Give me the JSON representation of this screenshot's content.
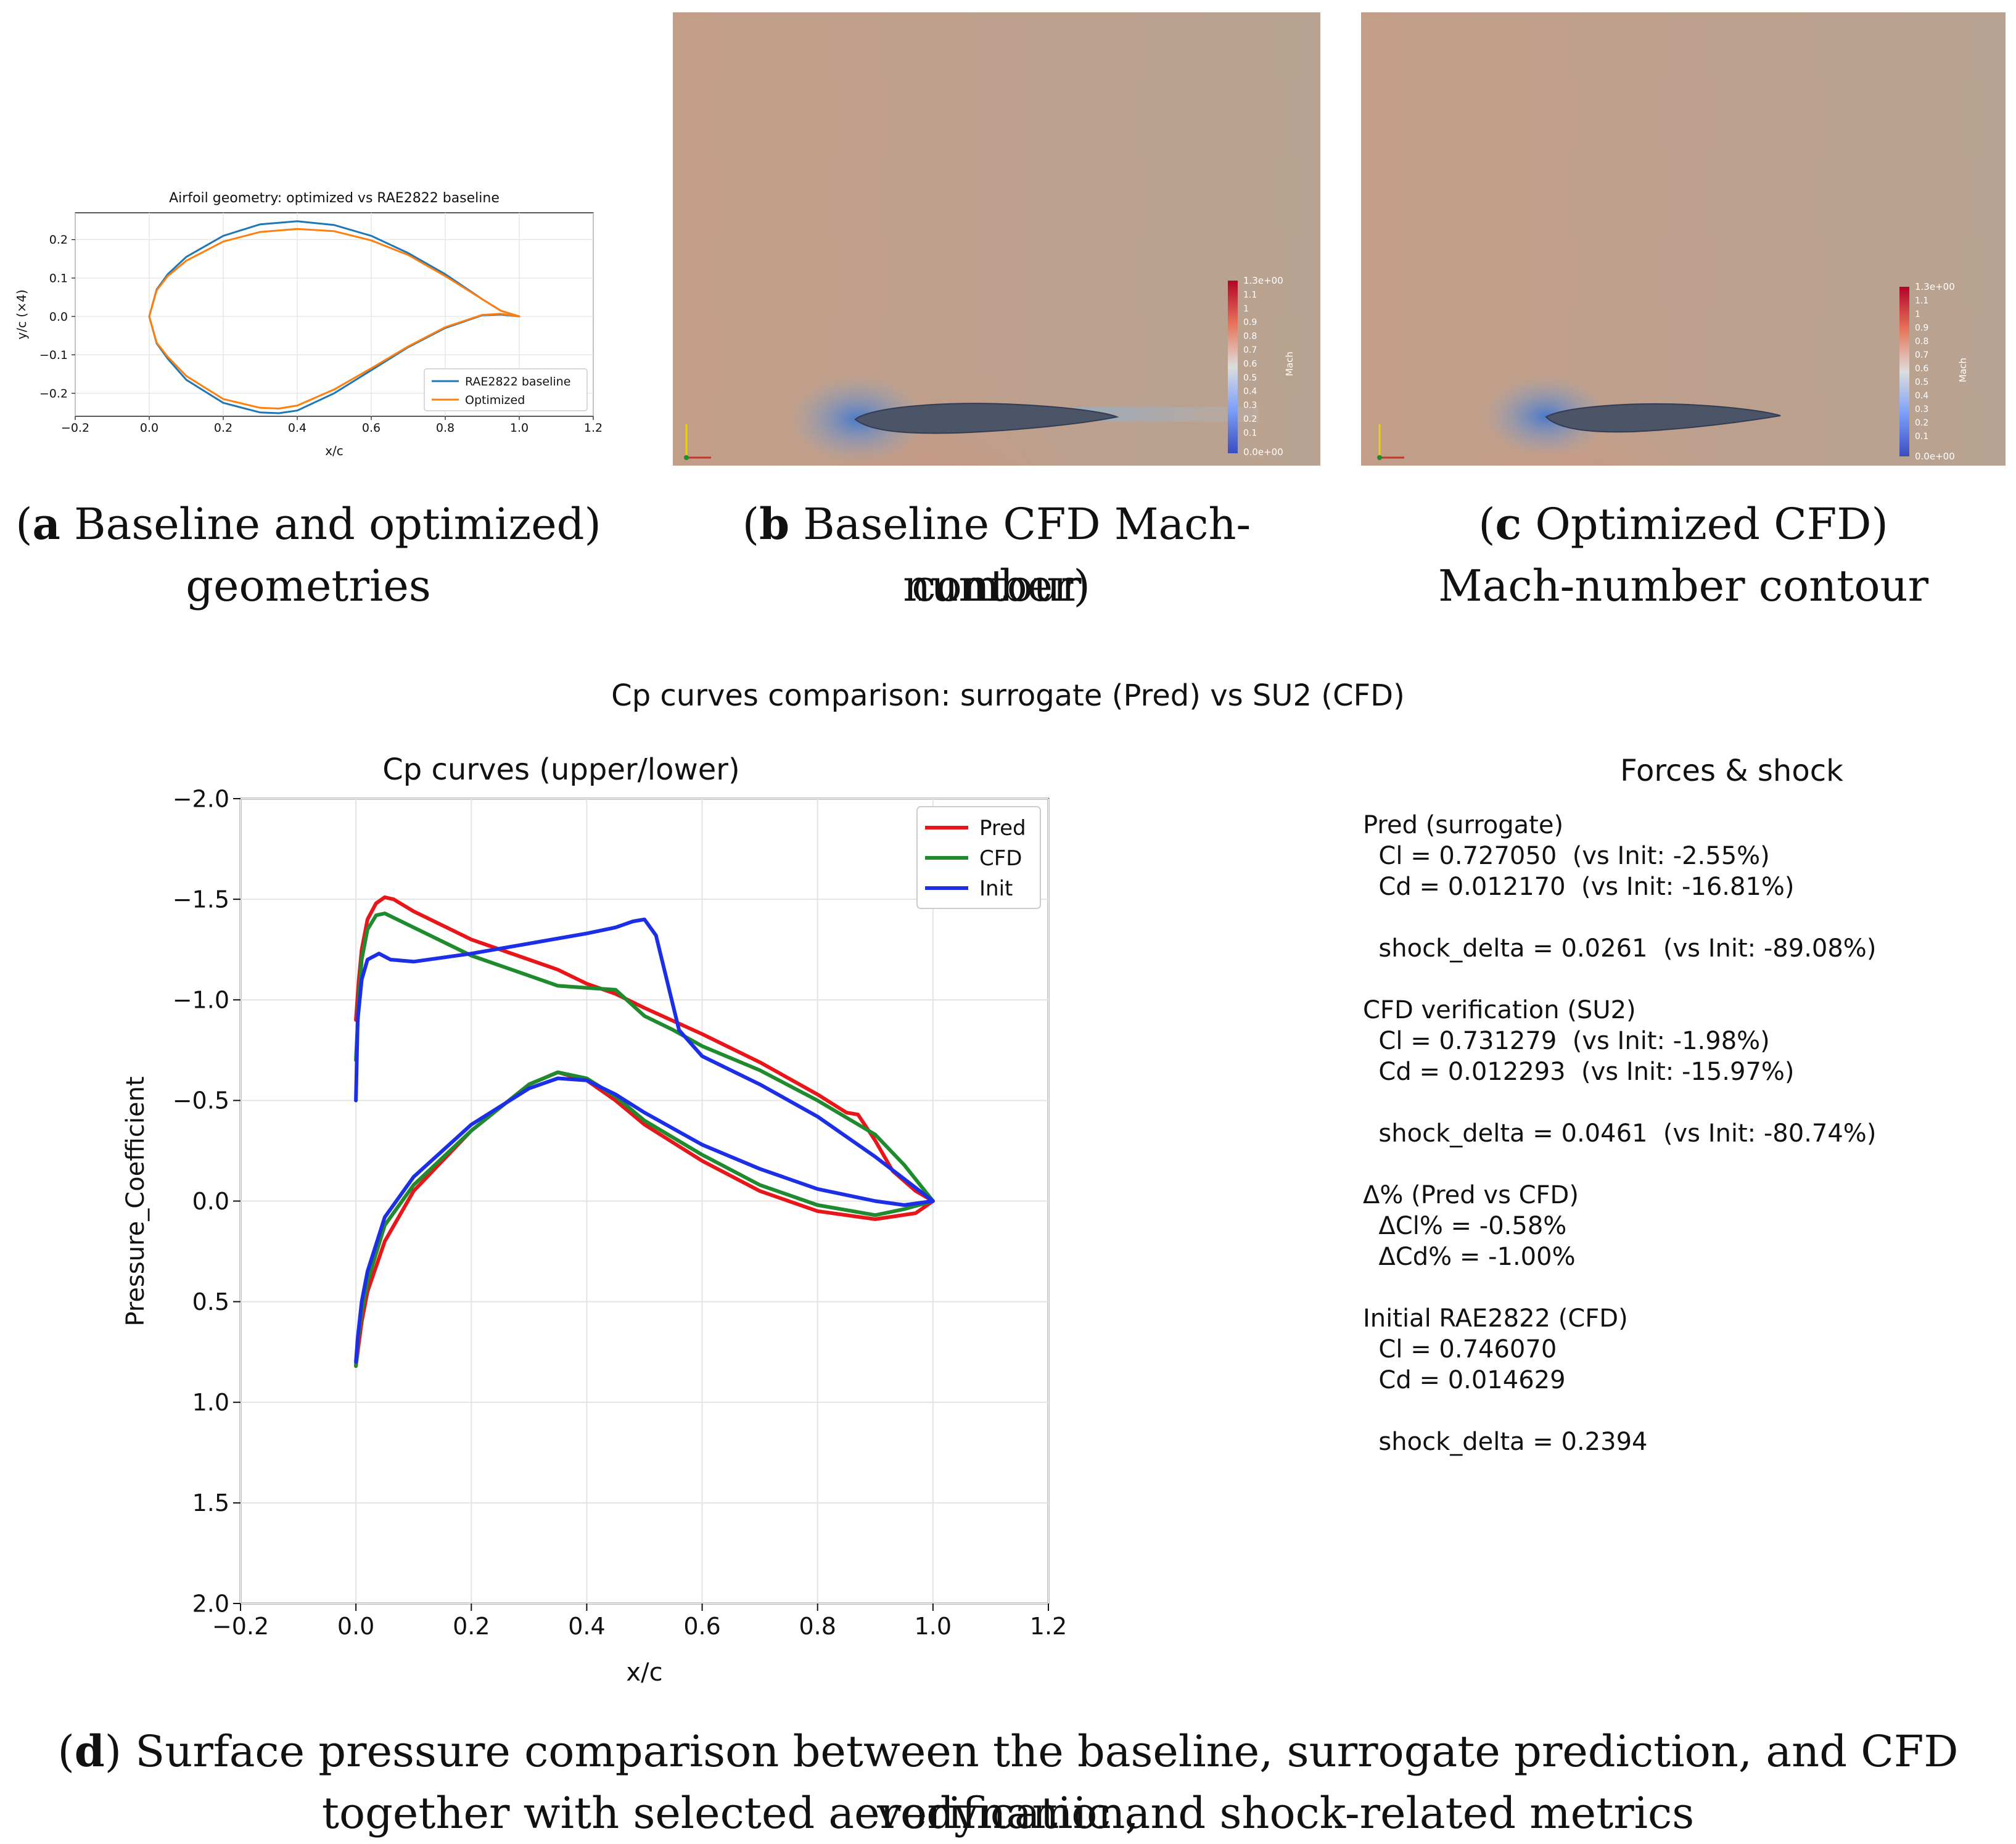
{
  "panel_a": {
    "caption_label": "a",
    "caption_text_l1": " Baseline and optimized",
    "caption_text_l2": "geometries"
  },
  "panel_b": {
    "caption_label": "b",
    "caption_text_l1": " Baseline CFD Mach-number",
    "caption_text_l2": "contour",
    "colorbar": {
      "title": "Mach",
      "max_label": "1.3e+00",
      "min_label": "0.0e+00",
      "ticks": [
        "1.1",
        "1",
        "0.9",
        "0.8",
        "0.7",
        "0.6",
        "0.5",
        "0.4",
        "0.3",
        "0.2",
        "0.1"
      ]
    }
  },
  "panel_c": {
    "caption_label": "c",
    "caption_text_l1": " Optimized CFD",
    "caption_text_l2": "Mach-number contour",
    "colorbar": {
      "title": "Mach",
      "max_label": "1.3e+00",
      "min_label": "0.0e+00",
      "ticks": [
        "1.1",
        "1",
        "0.9",
        "0.8",
        "0.7",
        "0.6",
        "0.5",
        "0.4",
        "0.3",
        "0.2",
        "0.1"
      ]
    }
  },
  "panel_d": {
    "caption_label": "d",
    "caption_text_l1": " Surface pressure comparison between the baseline, surrogate prediction, and CFD verification,",
    "caption_text_l2": "together with selected aerodynamic and shock-related metrics",
    "suptitle": "Cp curves comparison: surrogate (Pred) vs SU2 (CFD)",
    "forces_title": "Forces & shock",
    "forces_lines": [
      "Pred (surrogate)",
      "  Cl = 0.727050  (vs Init: -2.55%)",
      "  Cd = 0.012170  (vs Init: -16.81%)",
      "",
      "  shock_delta = 0.0261  (vs Init: -89.08%)",
      "",
      "CFD verification (SU2)",
      "  Cl = 0.731279  (vs Init: -1.98%)",
      "  Cd = 0.012293  (vs Init: -15.97%)",
      "",
      "  shock_delta = 0.0461  (vs Init: -80.74%)",
      "",
      "Δ% (Pred vs CFD)",
      "  ΔCl% = -0.58%",
      "  ΔCd% = -1.00%",
      "",
      "Initial RAE2822 (CFD)",
      "  Cl = 0.746070",
      "  Cd = 0.014629",
      "",
      "  shock_delta = 0.2394"
    ]
  },
  "chart_data": [
    {
      "type": "line",
      "title": "Airfoil geometry: optimized vs RAE2822 baseline",
      "xlabel": "x/c",
      "ylabel": "y/c (×4)",
      "xlim": [
        -0.2,
        1.2
      ],
      "ylim": [
        -0.26,
        0.27
      ],
      "xticks": [
        "−0.2",
        "0.0",
        "0.2",
        "0.4",
        "0.6",
        "0.8",
        "1.0",
        "1.2"
      ],
      "yticks": [
        "0.2",
        "0.1",
        "0.0",
        "−0.1",
        "−0.2"
      ],
      "ytick_values": [
        0.2,
        0.1,
        0.0,
        -0.1,
        -0.2
      ],
      "grid": true,
      "legend_position": "lower-right",
      "series": [
        {
          "name": "RAE2822 baseline",
          "color": "#1f77b4",
          "x": [
            1.0,
            0.95,
            0.9,
            0.8,
            0.7,
            0.6,
            0.5,
            0.4,
            0.3,
            0.2,
            0.1,
            0.05,
            0.02,
            0.0,
            0.02,
            0.05,
            0.1,
            0.2,
            0.3,
            0.35,
            0.4,
            0.5,
            0.6,
            0.7,
            0.8,
            0.9,
            0.95,
            1.0
          ],
          "y": [
            0.0,
            0.015,
            0.045,
            0.11,
            0.165,
            0.21,
            0.238,
            0.248,
            0.24,
            0.21,
            0.155,
            0.11,
            0.07,
            0.0,
            -0.07,
            -0.11,
            -0.165,
            -0.225,
            -0.25,
            -0.252,
            -0.245,
            -0.2,
            -0.14,
            -0.08,
            -0.03,
            0.003,
            0.005,
            0.0
          ]
        },
        {
          "name": "Optimized",
          "color": "#ff7f0e",
          "x": [
            1.0,
            0.95,
            0.9,
            0.8,
            0.7,
            0.6,
            0.5,
            0.4,
            0.3,
            0.2,
            0.1,
            0.05,
            0.02,
            0.0,
            0.02,
            0.05,
            0.1,
            0.2,
            0.3,
            0.35,
            0.4,
            0.5,
            0.6,
            0.7,
            0.8,
            0.9,
            0.95,
            1.0
          ],
          "y": [
            0.0,
            0.015,
            0.045,
            0.105,
            0.16,
            0.198,
            0.222,
            0.228,
            0.22,
            0.195,
            0.145,
            0.105,
            0.068,
            0.0,
            -0.068,
            -0.105,
            -0.155,
            -0.215,
            -0.238,
            -0.24,
            -0.232,
            -0.19,
            -0.135,
            -0.078,
            -0.028,
            0.004,
            0.007,
            0.0
          ]
        }
      ]
    },
    {
      "type": "line",
      "title": "Cp curves (upper/lower)",
      "xlabel": "x/c",
      "ylabel": "Pressure_Coefficient",
      "xlim": [
        -0.2,
        1.2
      ],
      "ylim": [
        2.0,
        -2.0
      ],
      "y_inverted": true,
      "xticks": [
        "−0.2",
        "0.0",
        "0.2",
        "0.4",
        "0.6",
        "0.8",
        "1.0",
        "1.2"
      ],
      "yticks": [
        "−2.0",
        "−1.5",
        "−1.0",
        "−0.5",
        "0.0",
        "0.5",
        "1.0",
        "1.5",
        "2.0"
      ],
      "ytick_values": [
        -2.0,
        -1.5,
        -1.0,
        -0.5,
        0.0,
        0.5,
        1.0,
        1.5,
        2.0
      ],
      "grid": true,
      "legend_position": "upper-right",
      "series": [
        {
          "name": "Pred",
          "color": "#e8161a",
          "x": [
            0.0,
            0.005,
            0.01,
            0.02,
            0.035,
            0.05,
            0.065,
            0.1,
            0.2,
            0.3,
            0.35,
            0.4,
            0.45,
            0.5,
            0.6,
            0.7,
            0.8,
            0.85,
            0.87,
            0.9,
            0.93,
            0.97,
            1.0,
            0.97,
            0.9,
            0.8,
            0.7,
            0.6,
            0.5,
            0.45,
            0.4,
            0.35,
            0.3,
            0.2,
            0.1,
            0.05,
            0.02,
            0.01,
            0.003,
            0.0
          ],
          "y": [
            -0.9,
            -1.1,
            -1.25,
            -1.4,
            -1.48,
            -1.51,
            -1.5,
            -1.44,
            -1.3,
            -1.2,
            -1.15,
            -1.08,
            -1.03,
            -0.96,
            -0.83,
            -0.69,
            -0.53,
            -0.44,
            -0.43,
            -0.3,
            -0.15,
            -0.05,
            0.0,
            0.06,
            0.09,
            0.05,
            -0.05,
            -0.2,
            -0.38,
            -0.5,
            -0.6,
            -0.64,
            -0.58,
            -0.35,
            -0.05,
            0.2,
            0.45,
            0.6,
            0.75,
            0.82
          ]
        },
        {
          "name": "CFD",
          "color": "#1f8a2e",
          "x": [
            0.0,
            0.005,
            0.01,
            0.02,
            0.035,
            0.05,
            0.1,
            0.2,
            0.3,
            0.35,
            0.4,
            0.45,
            0.5,
            0.55,
            0.6,
            0.7,
            0.8,
            0.9,
            0.95,
            1.0,
            0.95,
            0.9,
            0.8,
            0.7,
            0.6,
            0.5,
            0.45,
            0.4,
            0.35,
            0.3,
            0.2,
            0.1,
            0.05,
            0.02,
            0.01,
            0.003,
            0.0
          ],
          "y": [
            -0.7,
            -1.0,
            -1.2,
            -1.35,
            -1.42,
            -1.43,
            -1.36,
            -1.22,
            -1.12,
            -1.07,
            -1.06,
            -1.05,
            -0.92,
            -0.85,
            -0.77,
            -0.65,
            -0.5,
            -0.33,
            -0.18,
            0.0,
            0.04,
            0.07,
            0.02,
            -0.08,
            -0.23,
            -0.4,
            -0.52,
            -0.61,
            -0.64,
            -0.58,
            -0.35,
            -0.08,
            0.12,
            0.4,
            0.55,
            0.7,
            0.82
          ]
        },
        {
          "name": "Init",
          "color": "#1c2ee6",
          "x": [
            0.0,
            0.003,
            0.01,
            0.02,
            0.04,
            0.06,
            0.1,
            0.2,
            0.3,
            0.4,
            0.45,
            0.48,
            0.5,
            0.52,
            0.56,
            0.6,
            0.7,
            0.8,
            0.9,
            1.0,
            0.95,
            0.9,
            0.8,
            0.7,
            0.6,
            0.5,
            0.45,
            0.4,
            0.35,
            0.3,
            0.2,
            0.1,
            0.05,
            0.02,
            0.01,
            0.003,
            0.0
          ],
          "y": [
            -0.5,
            -0.9,
            -1.1,
            -1.2,
            -1.23,
            -1.2,
            -1.19,
            -1.23,
            -1.28,
            -1.33,
            -1.36,
            -1.39,
            -1.4,
            -1.32,
            -0.85,
            -0.72,
            -0.58,
            -0.42,
            -0.22,
            0.0,
            0.02,
            0.0,
            -0.06,
            -0.16,
            -0.28,
            -0.44,
            -0.53,
            -0.6,
            -0.61,
            -0.56,
            -0.38,
            -0.12,
            0.08,
            0.35,
            0.5,
            0.68,
            0.8
          ]
        }
      ]
    }
  ]
}
